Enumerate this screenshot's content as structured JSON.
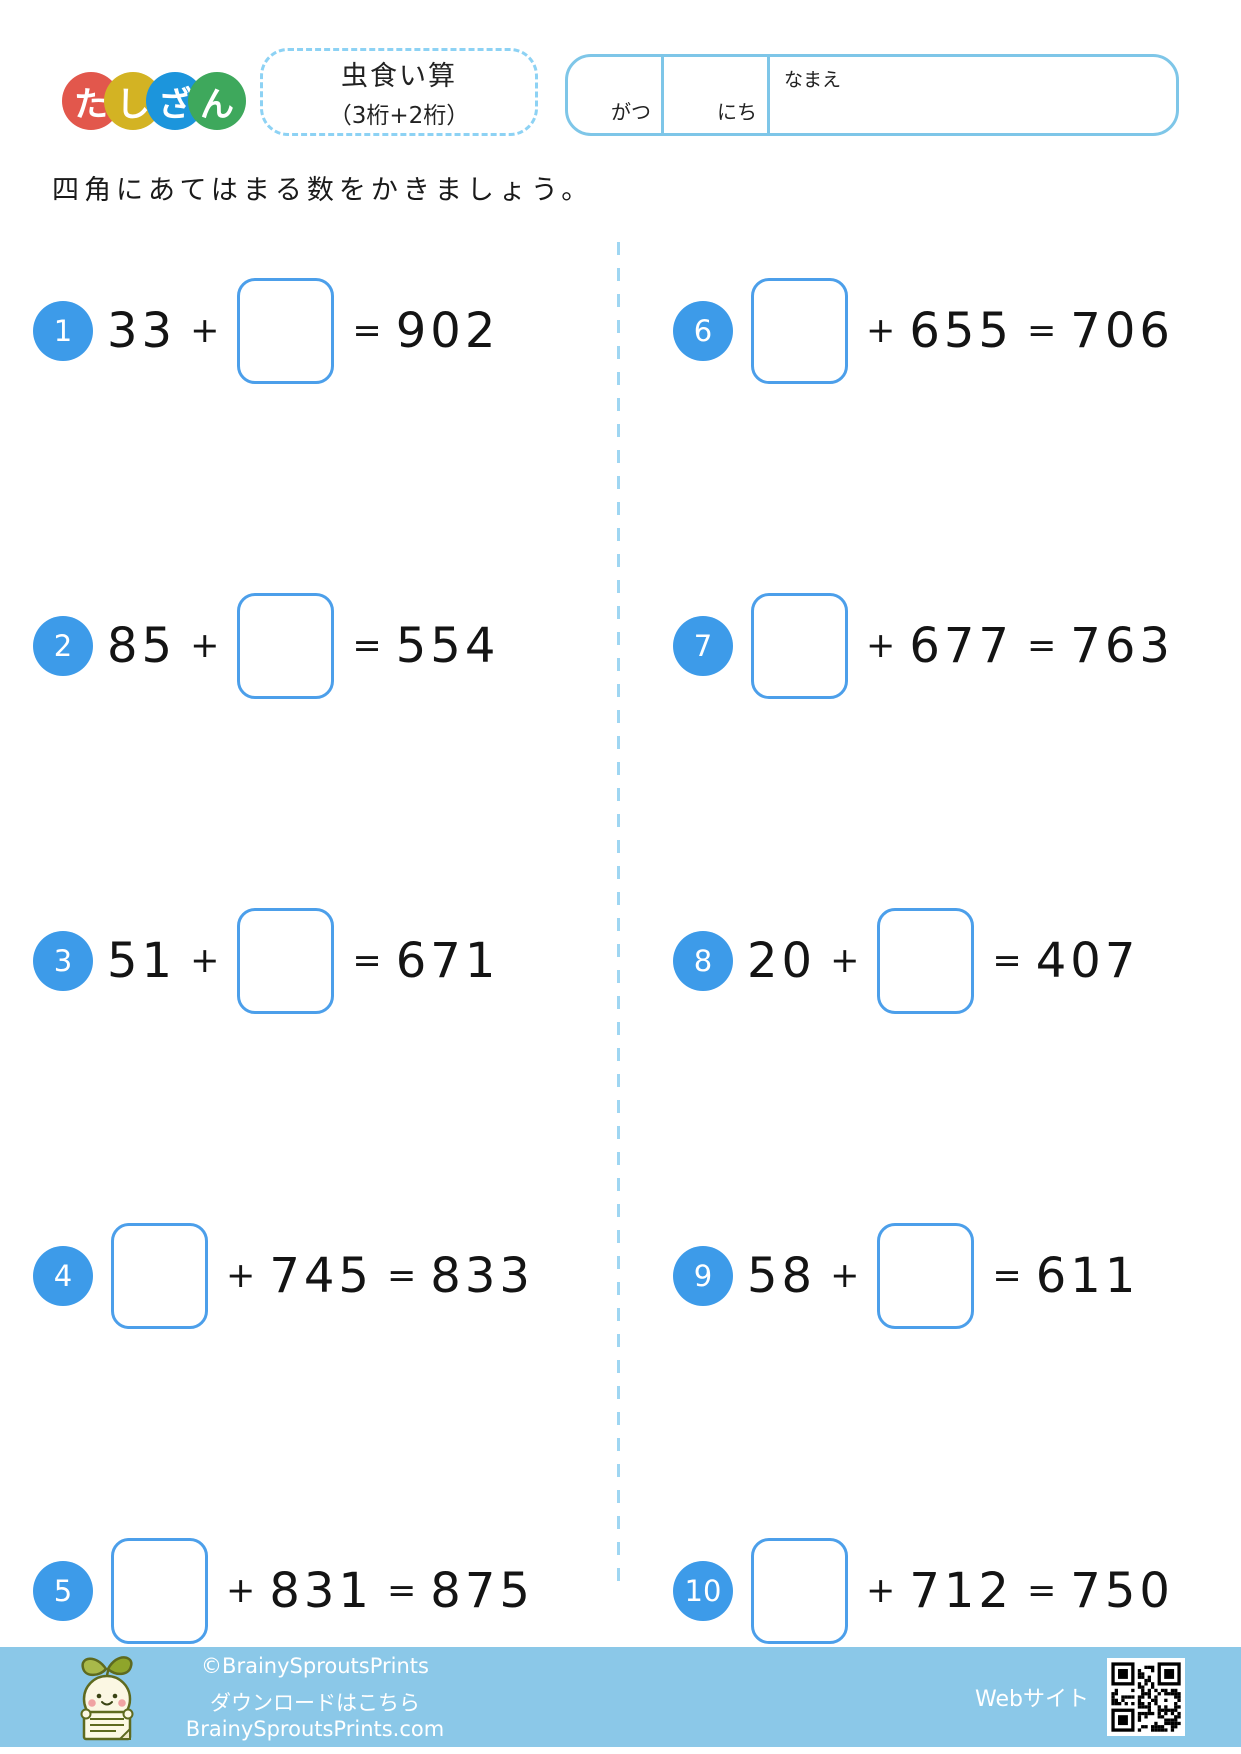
{
  "header": {
    "logo": {
      "characters": [
        {
          "char": "た",
          "color": "#E2574C"
        },
        {
          "char": "し",
          "color": "#D3B323"
        },
        {
          "char": "ざ",
          "color": "#1C95DC"
        },
        {
          "char": "ん",
          "color": "#3EA85C"
        }
      ]
    },
    "title": {
      "line1": "虫食い算",
      "line2": "（3桁+2桁）"
    },
    "date_name_box": {
      "month_label": "がつ",
      "day_label": "にち",
      "name_label": "なまえ"
    }
  },
  "instruction": "四角にあてはまる数をかきましょう。",
  "symbols": {
    "plus": "+",
    "equals": "="
  },
  "problems": [
    {
      "number": "1",
      "layout": "operand_first",
      "operand": "33",
      "result": "902"
    },
    {
      "number": "2",
      "layout": "operand_first",
      "operand": "85",
      "result": "554"
    },
    {
      "number": "3",
      "layout": "operand_first",
      "operand": "51",
      "result": "671"
    },
    {
      "number": "4",
      "layout": "box_first",
      "operand": "745",
      "result": "833"
    },
    {
      "number": "5",
      "layout": "box_first",
      "operand": "831",
      "result": "875"
    },
    {
      "number": "6",
      "layout": "box_first",
      "operand": "655",
      "result": "706"
    },
    {
      "number": "7",
      "layout": "box_first",
      "operand": "677",
      "result": "763"
    },
    {
      "number": "8",
      "layout": "operand_first",
      "operand": "20",
      "result": "407"
    },
    {
      "number": "9",
      "layout": "operand_first",
      "operand": "58",
      "result": "611"
    },
    {
      "number": "10",
      "layout": "box_first",
      "operand": "712",
      "result": "750"
    }
  ],
  "footer": {
    "copyright": "©BrainySproutsPrints",
    "download_text": "ダウンロードはこちら BrainySproutsPrints.com",
    "website_label": "Webサイト"
  },
  "colors": {
    "badge_blue": "#3D9BE9",
    "answer_box_border": "#4C9FEA",
    "title_dash_border": "#8DD2F4",
    "date_box_border": "#7EC6E8",
    "column_divider": "#9FD6F2",
    "footer_background": "#8BC8E8"
  }
}
